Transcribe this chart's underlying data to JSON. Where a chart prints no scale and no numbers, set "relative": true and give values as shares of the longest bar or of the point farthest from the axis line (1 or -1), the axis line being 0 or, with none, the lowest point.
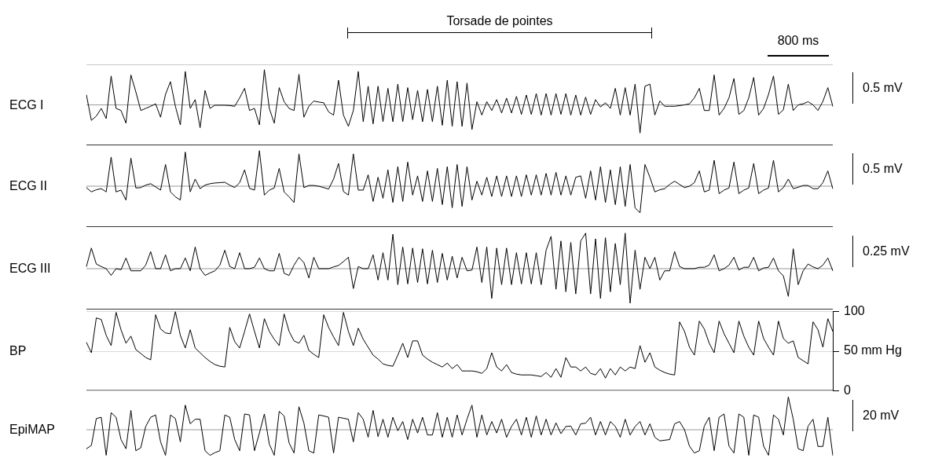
{
  "chart_data": [
    {
      "type": "line",
      "ylabel": "ECG I",
      "relative": true,
      "tick_labels": false,
      "legend": false,
      "marker": "none",
      "annotations": [
        "Torsade de pointes",
        "800 ms",
        "0.5 mV"
      ],
      "categories": [
        null,
        null,
        null,
        null,
        null,
        null,
        null,
        null,
        null,
        null,
        null,
        null,
        null,
        null,
        null,
        null,
        null,
        null,
        null,
        null,
        null,
        null,
        null,
        null,
        null,
        null,
        null,
        null,
        null,
        null,
        null,
        null,
        null,
        null,
        null,
        null,
        null,
        null,
        null,
        null,
        null,
        null,
        null,
        null,
        null,
        null,
        null,
        null,
        null,
        null,
        null,
        null,
        null,
        null,
        null,
        null,
        null,
        null,
        null,
        null,
        null,
        null,
        null,
        null,
        null,
        null,
        null,
        null,
        null,
        null,
        null,
        null,
        null,
        null,
        null,
        null,
        null,
        null,
        null,
        null,
        null,
        null,
        null,
        null,
        null,
        null,
        null,
        null,
        null,
        null,
        null,
        null,
        null,
        null,
        null,
        null,
        null,
        null,
        null,
        null,
        null,
        null,
        null,
        null,
        null,
        null,
        null,
        null,
        null,
        null,
        null,
        null,
        null,
        null,
        null,
        null,
        null,
        null,
        null,
        null,
        null,
        null,
        null,
        null,
        null,
        null,
        null,
        null,
        null,
        null,
        null,
        null,
        null,
        null,
        null,
        null,
        null,
        null,
        null,
        null,
        null,
        null,
        null,
        null,
        null,
        null,
        null,
        null,
        null,
        null,
        null,
        null
      ],
      "series": [
        {
          "color": "#000000",
          "values": [
            0.28,
            -0.44,
            -0.32,
            -0.1,
            -0.39,
            0.82,
            -0.1,
            -0.16,
            -0.52,
            0.85,
            0.37,
            -0.16,
            -0.1,
            -0.04,
            0.03,
            -0.35,
            0.3,
            0.66,
            -0.04,
            -0.57,
            0.95,
            -0.1,
            0.15,
            -0.65,
            0.41,
            -0.1,
            -0.01,
            -0.01,
            -0.01,
            -0.02,
            -0.04,
            0.2,
            0.47,
            -0.16,
            -0.1,
            -0.57,
            1,
            -0.1,
            -0.52,
            0.49,
            0.09,
            -0.1,
            -0.16,
            0.87,
            -0.35,
            -0.04,
            0.11,
            0.08,
            0.06,
            -0.2,
            -0.29,
            0.7,
            -0.29,
            -0.61,
            -0.16,
            0.95,
            -0.48,
            0.53,
            -0.54,
            0.53,
            -0.48,
            0.47,
            -0.48,
            0.59,
            -0.48,
            0.49,
            -0.42,
            0.41,
            -0.48,
            0.44,
            -0.48,
            0.53,
            -0.58,
            0.7,
            -0.61,
            0.66,
            -0.61,
            0.62,
            -0.7,
            0.09,
            -0.29,
            0.09,
            -0.16,
            0.15,
            -0.23,
            0.19,
            -0.23,
            0.24,
            -0.27,
            0.28,
            -0.27,
            0.32,
            -0.29,
            0.32,
            -0.29,
            0.32,
            -0.27,
            0.32,
            -0.29,
            0.28,
            -0.29,
            0.22,
            -0.27,
            0.15,
            -0.06,
            0.06,
            -0.1,
            0.47,
            -0.29,
            0.49,
            -0.29,
            0.59,
            -0.8,
            0.53,
            0.59,
            -0.29,
            0.11,
            -0.04,
            -0.04,
            -0.04,
            -0.02,
            0,
            0.03,
            0.2,
            0.47,
            -0.16,
            -0.16,
            0.85,
            -0.29,
            -0.1,
            0.2,
            0.75,
            -0.27,
            -0.16,
            0.2,
            0.78,
            -0.29,
            -0.1,
            0.3,
            0.82,
            -0.27,
            -0.14,
            0.59,
            -0.16,
            0,
            0.03,
            0.09,
            0,
            -0.16,
            0.1,
            0.49,
            -0.04
          ]
        }
      ]
    },
    {
      "type": "line",
      "ylabel": "ECG II",
      "relative": true,
      "tick_labels": false,
      "legend": false,
      "marker": "none",
      "annotations": [
        "0.5 mV"
      ],
      "categories": [
        null,
        null,
        null,
        null,
        null,
        null,
        null,
        null,
        null,
        null,
        null,
        null,
        null,
        null,
        null,
        null,
        null,
        null,
        null,
        null,
        null,
        null,
        null,
        null,
        null,
        null,
        null,
        null,
        null,
        null,
        null,
        null,
        null,
        null,
        null,
        null,
        null,
        null,
        null,
        null,
        null,
        null,
        null,
        null,
        null,
        null,
        null,
        null,
        null,
        null,
        null,
        null,
        null,
        null,
        null,
        null,
        null,
        null,
        null,
        null,
        null,
        null,
        null,
        null,
        null,
        null,
        null,
        null,
        null,
        null,
        null,
        null,
        null,
        null,
        null,
        null,
        null,
        null,
        null,
        null,
        null,
        null,
        null,
        null,
        null,
        null,
        null,
        null,
        null,
        null,
        null,
        null,
        null,
        null,
        null,
        null,
        null,
        null,
        null,
        null,
        null,
        null,
        null,
        null,
        null,
        null,
        null,
        null,
        null,
        null,
        null,
        null,
        null,
        null,
        null,
        null,
        null,
        null,
        null,
        null,
        null,
        null,
        null,
        null,
        null,
        null,
        null,
        null,
        null,
        null,
        null,
        null,
        null,
        null,
        null,
        null,
        null,
        null,
        null,
        null,
        null,
        null,
        null,
        null,
        null,
        null,
        null,
        null,
        null,
        null,
        null,
        null
      ],
      "series": [
        {
          "color": "#000000",
          "values": [
            -0.04,
            -0.16,
            -0.1,
            -0.07,
            -0.16,
            0.82,
            -0.16,
            -0.11,
            -0.39,
            0.79,
            -0.05,
            -0.04,
            0.03,
            0.07,
            -0.02,
            -0.11,
            0.61,
            -0.16,
            -0.3,
            -0.39,
            0.96,
            -0.16,
            0.2,
            -0.07,
            0.03,
            0.07,
            0.09,
            0.1,
            0.11,
            0.03,
            -0.04,
            0.1,
            0.46,
            -0.06,
            -0.11,
            1,
            -0.25,
            -0.11,
            -0.05,
            0.5,
            -0.16,
            -0.3,
            -0.46,
            0.91,
            -0.04,
            0.02,
            0.02,
            0,
            -0.04,
            -0.08,
            0.2,
            0.64,
            -0.15,
            -0.25,
            0.91,
            -0.11,
            -0.11,
            0.32,
            -0.43,
            0.25,
            -0.34,
            0.46,
            -0.46,
            0.55,
            -0.43,
            0.68,
            -0.25,
            0.29,
            -0.43,
            0.43,
            -0.43,
            0.5,
            -0.52,
            0.55,
            -0.61,
            0.61,
            -0.57,
            0.55,
            -0.39,
            0.14,
            -0.25,
            0.25,
            -0.29,
            0.29,
            -0.29,
            0.29,
            -0.29,
            0.29,
            -0.29,
            0.32,
            -0.25,
            0.32,
            -0.25,
            0.36,
            -0.25,
            0.39,
            -0.25,
            0.29,
            -0.25,
            0.25,
            0.29,
            -0.34,
            0.43,
            -0.39,
            0.55,
            -0.46,
            0.46,
            -0.52,
            0.55,
            -0.57,
            0.61,
            -0.61,
            -0.75,
            0.61,
            0.25,
            -0.16,
            -0.1,
            -0.07,
            0.05,
            0.14,
            0.05,
            -0.04,
            0,
            0.1,
            0.43,
            -0.16,
            -0.11,
            0.73,
            -0.21,
            -0.11,
            -0.05,
            0.68,
            -0.21,
            -0.11,
            -0.05,
            0.64,
            -0.21,
            -0.11,
            -0.05,
            0.73,
            -0.16,
            -0.04,
            0.2,
            -0.07,
            -0.03,
            0.02,
            0.02,
            -0.07,
            -0.07,
            0.1,
            0.43,
            -0.07
          ]
        }
      ]
    },
    {
      "type": "line",
      "ylabel": "ECG III",
      "relative": true,
      "tick_labels": false,
      "legend": false,
      "marker": "none",
      "annotations": [
        "0.25 mV"
      ],
      "categories": [
        null,
        null,
        null,
        null,
        null,
        null,
        null,
        null,
        null,
        null,
        null,
        null,
        null,
        null,
        null,
        null,
        null,
        null,
        null,
        null,
        null,
        null,
        null,
        null,
        null,
        null,
        null,
        null,
        null,
        null,
        null,
        null,
        null,
        null,
        null,
        null,
        null,
        null,
        null,
        null,
        null,
        null,
        null,
        null,
        null,
        null,
        null,
        null,
        null,
        null,
        null,
        null,
        null,
        null,
        null,
        null,
        null,
        null,
        null,
        null,
        null,
        null,
        null,
        null,
        null,
        null,
        null,
        null,
        null,
        null,
        null,
        null,
        null,
        null,
        null,
        null,
        null,
        null,
        null,
        null,
        null,
        null,
        null,
        null,
        null,
        null,
        null,
        null,
        null,
        null,
        null,
        null,
        null,
        null,
        null,
        null,
        null,
        null,
        null,
        null,
        null,
        null,
        null,
        null,
        null,
        null,
        null,
        null,
        null,
        null,
        null,
        null,
        null,
        null,
        null,
        null,
        null,
        null,
        null,
        null,
        null,
        null,
        null,
        null,
        null,
        null,
        null,
        null,
        null,
        null,
        null,
        null,
        null,
        null,
        null,
        null,
        null,
        null,
        null,
        null,
        null,
        null,
        null,
        null,
        null,
        null,
        null,
        null,
        null,
        null,
        null,
        null
      ],
      "series": [
        {
          "color": "#000000",
          "values": [
            0.06,
            0.58,
            0.13,
            0.06,
            0,
            -0.19,
            0,
            -0.03,
            0.3,
            -0.06,
            -0.06,
            -0.06,
            0.1,
            0.48,
            0,
            0,
            0.39,
            -0.06,
            0,
            0,
            0.3,
            -0.06,
            0.61,
            0,
            -0.19,
            -0.12,
            -0.06,
            0.1,
            0.52,
            0.06,
            0,
            0.45,
            0,
            0,
            0.04,
            0.3,
            0,
            -0.06,
            -0.06,
            0.43,
            -0.13,
            -0.19,
            0.1,
            0.32,
            0.17,
            -0.26,
            0.32,
            0,
            0,
            0,
            0.05,
            0.09,
            0.2,
            0.32,
            -0.56,
            0.06,
            0,
            0,
            0.39,
            -0.32,
            0.45,
            -0.32,
            0.97,
            -0.45,
            0.61,
            -0.43,
            0.58,
            -0.39,
            0.56,
            -0.43,
            0.52,
            -0.39,
            0.43,
            -0.32,
            0.35,
            -0.26,
            0.32,
            -0.06,
            -0.04,
            0.61,
            -0.39,
            0.61,
            -0.84,
            0.58,
            -0.45,
            0.58,
            -0.45,
            0.45,
            -0.43,
            0.45,
            -0.43,
            0.45,
            -0.45,
            0.52,
            0.91,
            -0.58,
            0.78,
            -0.65,
            0.74,
            -0.71,
            0.78,
            1,
            -0.71,
            0.84,
            -0.84,
            0.87,
            -0.65,
            0.71,
            -0.45,
            1,
            -0.97,
            0.52,
            -0.58,
            0.32,
            0,
            0.32,
            -0.32,
            -0.06,
            -0.06,
            0.48,
            0.06,
            0,
            0,
            0,
            0.04,
            0.04,
            0.1,
            0.39,
            -0.06,
            0,
            0.1,
            0.32,
            -0.04,
            0.04,
            0.04,
            0.32,
            -0.06,
            0.02,
            0.04,
            0.3,
            -0.06,
            -0.2,
            -0.78,
            0.56,
            -0.45,
            -0.06,
            0.13,
            0.05,
            0,
            0.1,
            0.3,
            -0.06
          ]
        }
      ]
    },
    {
      "type": "line",
      "ylabel": "BP",
      "grid": "y",
      "tick_labels": "y",
      "legend": false,
      "marker": "none",
      "ylim": [
        0,
        100
      ],
      "yticks": [
        0,
        {
          "value": 50,
          "label": "50 mm Hg"
        },
        100
      ],
      "categories": [
        null,
        null,
        null,
        null,
        null,
        null,
        null,
        null,
        null,
        null,
        null,
        null,
        null,
        null,
        null,
        null,
        null,
        null,
        null,
        null,
        null,
        null,
        null,
        null,
        null,
        null,
        null,
        null,
        null,
        null,
        null,
        null,
        null,
        null,
        null,
        null,
        null,
        null,
        null,
        null,
        null,
        null,
        null,
        null,
        null,
        null,
        null,
        null,
        null,
        null,
        null,
        null,
        null,
        null,
        null,
        null,
        null,
        null,
        null,
        null,
        null,
        null,
        null,
        null,
        null,
        null,
        null,
        null,
        null,
        null,
        null,
        null,
        null,
        null,
        null,
        null,
        null,
        null,
        null,
        null,
        null,
        null,
        null,
        null,
        null,
        null,
        null,
        null,
        null,
        null,
        null,
        null,
        null,
        null,
        null,
        null,
        null,
        null,
        null,
        null,
        null,
        null,
        null,
        null,
        null,
        null,
        null,
        null,
        null,
        null,
        null,
        null,
        null,
        null,
        null,
        null,
        null,
        null,
        null,
        null,
        null,
        null,
        null,
        null,
        null,
        null,
        null,
        null,
        null,
        null,
        null,
        null,
        null,
        null,
        null,
        null,
        null,
        null,
        null,
        null,
        null,
        null,
        null,
        null,
        null,
        null,
        null,
        null,
        null,
        null,
        null,
        null
      ],
      "series": [
        {
          "color": "#000000",
          "values": [
            61,
            48,
            92,
            90,
            70,
            57,
            99,
            77,
            60,
            69,
            52,
            47,
            42,
            39,
            96,
            78,
            73,
            72,
            100,
            70,
            54,
            77,
            54,
            48,
            42,
            37,
            33,
            31,
            30,
            80,
            62,
            54,
            75,
            97,
            75,
            54,
            91,
            75,
            65,
            57,
            97,
            75,
            63,
            60,
            70,
            51,
            46,
            42,
            96,
            80,
            68,
            57,
            99,
            75,
            57,
            79,
            65,
            55,
            45,
            40,
            34,
            32,
            31,
            45,
            60,
            42,
            63,
            63,
            45,
            40,
            36,
            33,
            30,
            35,
            28,
            33,
            25,
            25,
            25,
            24,
            22,
            28,
            48,
            30,
            25,
            33,
            23,
            21,
            20,
            20,
            20,
            19,
            18,
            23,
            17,
            28,
            17,
            42,
            30,
            30,
            25,
            30,
            22,
            20,
            28,
            16,
            28,
            20,
            30,
            25,
            30,
            28,
            57,
            36,
            48,
            30,
            26,
            23,
            21,
            20,
            87,
            75,
            55,
            45,
            88,
            78,
            60,
            48,
            88,
            72,
            60,
            48,
            88,
            69,
            55,
            45,
            88,
            66,
            55,
            45,
            88,
            66,
            60,
            63,
            42,
            38,
            34,
            87,
            77,
            55,
            91,
            75
          ]
        }
      ]
    },
    {
      "type": "line",
      "ylabel": "EpiMAP",
      "relative": true,
      "tick_labels": false,
      "legend": false,
      "marker": "none",
      "annotations": [
        "20 mV"
      ],
      "categories": [
        null,
        null,
        null,
        null,
        null,
        null,
        null,
        null,
        null,
        null,
        null,
        null,
        null,
        null,
        null,
        null,
        null,
        null,
        null,
        null,
        null,
        null,
        null,
        null,
        null,
        null,
        null,
        null,
        null,
        null,
        null,
        null,
        null,
        null,
        null,
        null,
        null,
        null,
        null,
        null,
        null,
        null,
        null,
        null,
        null,
        null,
        null,
        null,
        null,
        null,
        null,
        null,
        null,
        null,
        null,
        null,
        null,
        null,
        null,
        null,
        null,
        null,
        null,
        null,
        null,
        null,
        null,
        null,
        null,
        null,
        null,
        null,
        null,
        null,
        null,
        null,
        null,
        null,
        null,
        null,
        null,
        null,
        null,
        null,
        null,
        null,
        null,
        null,
        null,
        null,
        null,
        null,
        null,
        null,
        null,
        null,
        null,
        null,
        null,
        null,
        null,
        null,
        null,
        null,
        null,
        null,
        null,
        null,
        null,
        null,
        null,
        null,
        null,
        null,
        null,
        null,
        null,
        null,
        null,
        null,
        null,
        null,
        null,
        null,
        null,
        null,
        null,
        null,
        null,
        null,
        null,
        null,
        null,
        null,
        null,
        null,
        null,
        null,
        null,
        null,
        null,
        null,
        null,
        null,
        null,
        null,
        null,
        null,
        null,
        null,
        null,
        null
      ],
      "series": [
        {
          "color": "#000000",
          "values": [
            -0.58,
            -0.48,
            0.34,
            0.38,
            -0.78,
            0.52,
            0.38,
            -0.3,
            -0.58,
            0.59,
            -0.64,
            -0.55,
            0.1,
            0.38,
            0.45,
            -0.37,
            -0.78,
            0.45,
            0.34,
            -0.37,
            0.75,
            0.18,
            0.32,
            0.32,
            -0.64,
            -0.78,
            -0.7,
            -0.64,
            0.45,
            0.38,
            -0.3,
            -0.64,
            0.48,
            0.45,
            -0.64,
            -0.1,
            0.48,
            -0.44,
            -0.78,
            0.56,
            0.42,
            -0.4,
            -0.71,
            0.7,
            0.2,
            -0.64,
            -0.71,
            0.45,
            0.42,
            0.38,
            -0.71,
            0.38,
            0.35,
            0.32,
            -0.37,
            0.52,
            0.32,
            -0.23,
            0.59,
            -0.21,
            0.32,
            -0.23,
            0.38,
            -0.03,
            0.25,
            -0.3,
            0.32,
            -0.1,
            0.38,
            -0.16,
            -0.16,
            0.52,
            -0.23,
            0.38,
            -0.23,
            0.45,
            -0.16,
            0.32,
            0.75,
            -0.23,
            0.45,
            -0.16,
            0.25,
            -0.1,
            0.32,
            -0.23,
            0.1,
            0.32,
            -0.16,
            0.38,
            -0.23,
            0.42,
            -0.16,
            0.32,
            -0.16,
            0.21,
            -0.12,
            0.1,
            0.11,
            -0.16,
            0.18,
            0.2,
            0.38,
            -0.16,
            0.25,
            -0.16,
            0.25,
            0.1,
            -0.23,
            0.32,
            -0.16,
            0.1,
            0.25,
            -0.16,
            0.18,
            -0.23,
            -0.34,
            -0.32,
            -0.3,
            0.18,
            0.25,
            0,
            -0.5,
            -0.71,
            -0.64,
            0.11,
            0.38,
            -0.64,
            0.38,
            0.48,
            -0.5,
            -0.71,
            0.48,
            0.38,
            -0.78,
            0.45,
            0.38,
            -0.5,
            -0.78,
            0.45,
            0.32,
            -0.16,
            1,
            0.32,
            -0.58,
            -0.64,
            0.11,
            0.32,
            -0.51,
            -0.51,
            0.38,
            -0.78
          ]
        }
      ]
    }
  ]
}
